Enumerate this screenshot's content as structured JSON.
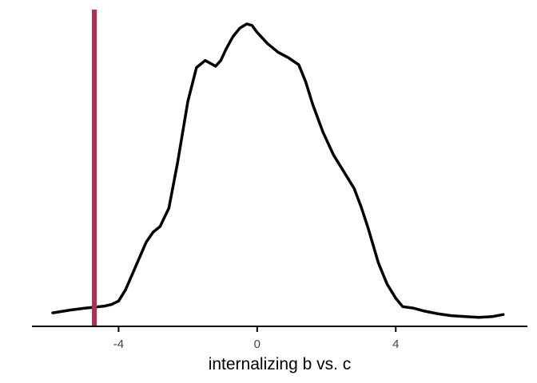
{
  "chart_data": {
    "type": "line",
    "subtype": "density",
    "title": "",
    "xlabel": "internalizing b vs. c",
    "ylabel": "",
    "xlim": [
      -6.5,
      7.8
    ],
    "x_ticks": [
      -4,
      0,
      4
    ],
    "x_tick_labels": [
      "-4",
      "0",
      "4"
    ],
    "y_axis_shown": false,
    "grid": false,
    "legend": "none",
    "series": [
      {
        "color": "#000000",
        "x": [
          -5.9,
          -5.4,
          -5.0,
          -4.7,
          -4.4,
          -4.2,
          -4.0,
          -3.8,
          -3.5,
          -3.2,
          -3.0,
          -2.8,
          -2.55,
          -2.3,
          -2.0,
          -1.75,
          -1.5,
          -1.35,
          -1.2,
          -1.05,
          -0.9,
          -0.7,
          -0.5,
          -0.3,
          -0.15,
          0.0,
          0.3,
          0.6,
          0.9,
          1.2,
          1.4,
          1.6,
          1.9,
          2.2,
          2.5,
          2.8,
          3.0,
          3.2,
          3.5,
          3.75,
          4.0,
          4.2,
          4.5,
          4.8,
          5.2,
          5.6,
          6.0,
          6.4,
          6.8,
          7.1
        ],
        "y": [
          0.048,
          0.058,
          0.064,
          0.068,
          0.072,
          0.078,
          0.09,
          0.13,
          0.215,
          0.3,
          0.335,
          0.355,
          0.42,
          0.58,
          0.8,
          0.92,
          0.945,
          0.935,
          0.925,
          0.945,
          0.985,
          1.03,
          1.06,
          1.075,
          1.07,
          1.045,
          1.005,
          0.975,
          0.955,
          0.93,
          0.87,
          0.79,
          0.69,
          0.61,
          0.55,
          0.49,
          0.425,
          0.35,
          0.225,
          0.15,
          0.1,
          0.07,
          0.065,
          0.055,
          0.045,
          0.038,
          0.035,
          0.032,
          0.035,
          0.042
        ]
      }
    ],
    "reference_lines": [
      {
        "orientation": "vertical",
        "x": -4.7,
        "color": "#b03050"
      }
    ]
  }
}
